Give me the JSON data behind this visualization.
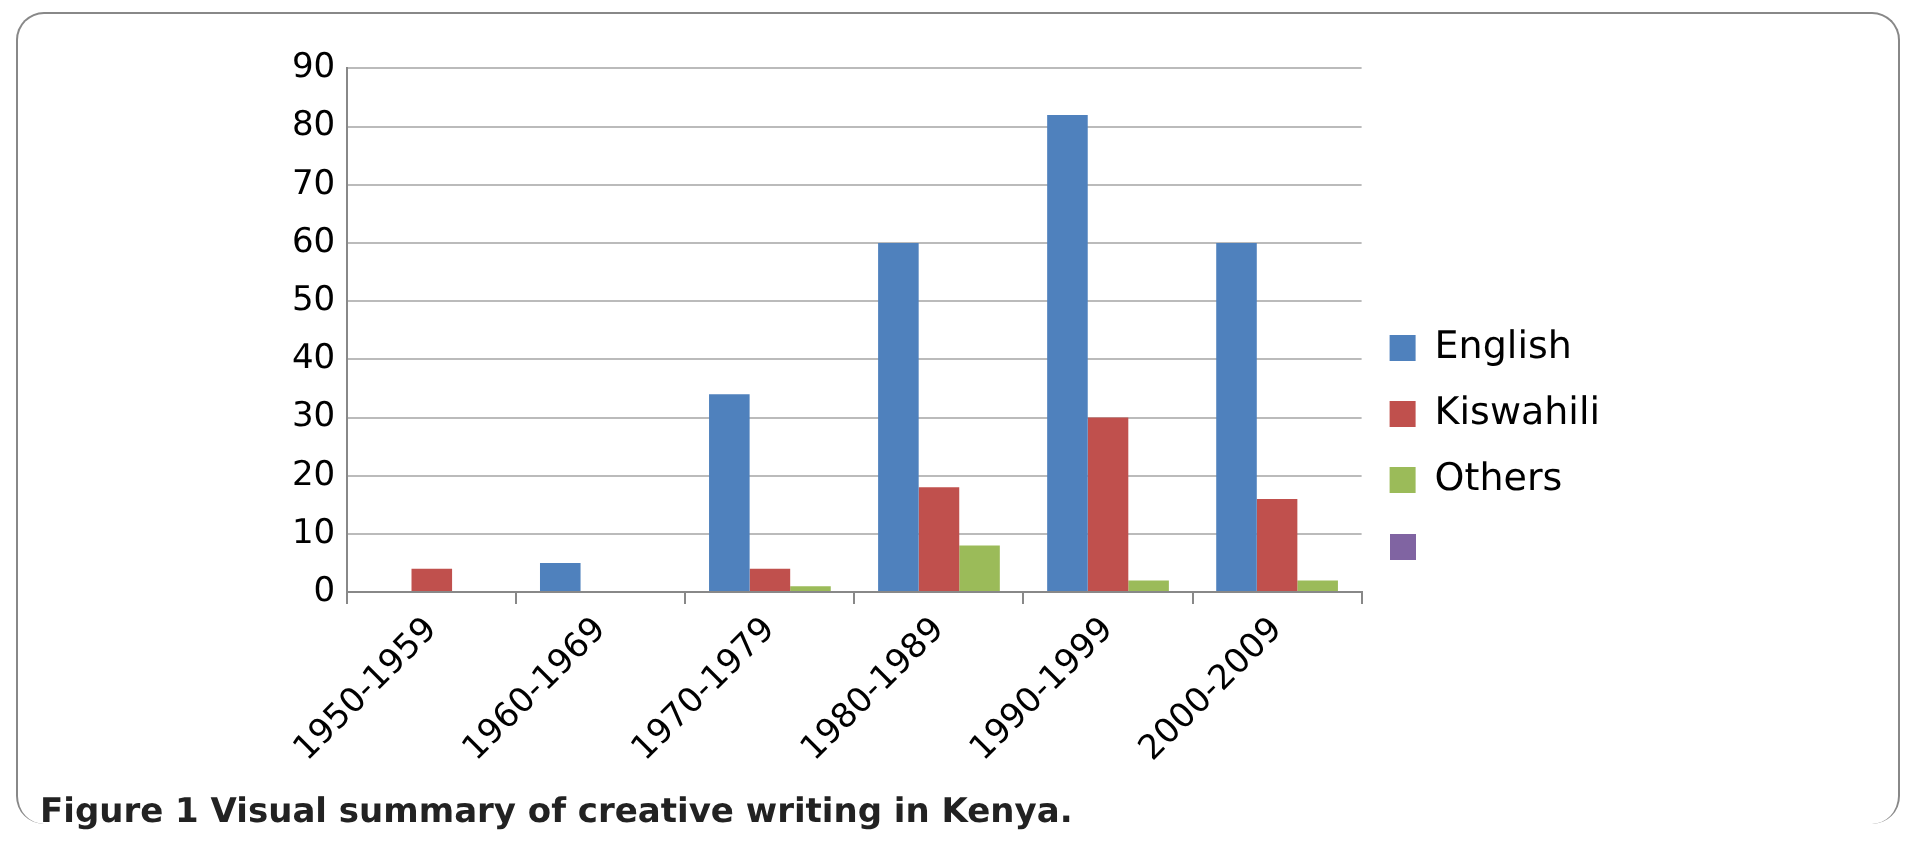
{
  "chart_data": {
    "type": "bar",
    "categories": [
      "1950-1959",
      "1960-1969",
      "1970-1979",
      "1980-1989",
      "1990-1999",
      "2000-2009"
    ],
    "series": [
      {
        "name": "English",
        "color": "#4f81bd",
        "values": [
          0,
          5,
          34,
          60,
          82,
          60
        ]
      },
      {
        "name": "Kiswahili",
        "color": "#c0504d",
        "values": [
          4,
          0,
          4,
          18,
          30,
          16
        ]
      },
      {
        "name": "Others",
        "color": "#9bbb59",
        "values": [
          0,
          0,
          1,
          8,
          2,
          2
        ]
      }
    ],
    "ylim": [
      0,
      90
    ],
    "yticks": [
      0,
      10,
      20,
      30,
      40,
      50,
      60,
      70,
      80,
      90
    ],
    "grid": "y",
    "legend": "right",
    "annotations": [
      "Figure 1 Visual summary of creative writing in Kenya."
    ]
  }
}
